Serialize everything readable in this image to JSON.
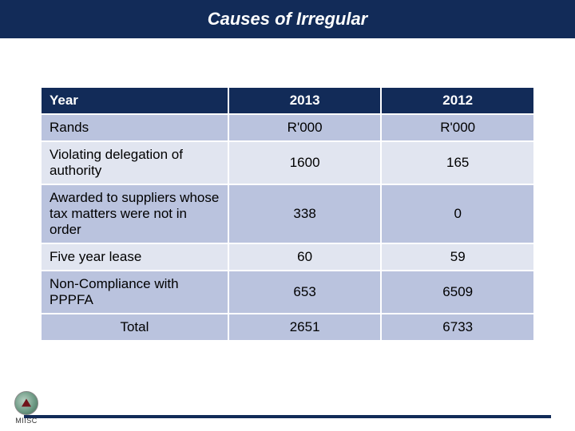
{
  "title": "Causes of Irregular",
  "table": {
    "header": {
      "c0": "Year",
      "c1": "2013",
      "c2": "2012"
    },
    "subheader": {
      "c0": "Rands",
      "c1": "R'000",
      "c2": "R'000"
    },
    "rows": [
      {
        "label": "Violating delegation of authority",
        "v2013": "1600",
        "v2012": "165"
      },
      {
        "label": "Awarded to suppliers whose tax matters were not in order",
        "v2013": "338",
        "v2012": "0"
      },
      {
        "label": "Five year lease",
        "v2013": "60",
        "v2012": "59"
      },
      {
        "label": "Non-Compliance with PPPFA",
        "v2013": "653",
        "v2012": "6509"
      }
    ],
    "total": {
      "label": "Total",
      "v2013": "2651",
      "v2012": "6733"
    }
  },
  "logo_text": "MIISC",
  "colors": {
    "brand_navy": "#122b58",
    "row_light": "#e1e5f0",
    "row_mid": "#bac3de"
  }
}
